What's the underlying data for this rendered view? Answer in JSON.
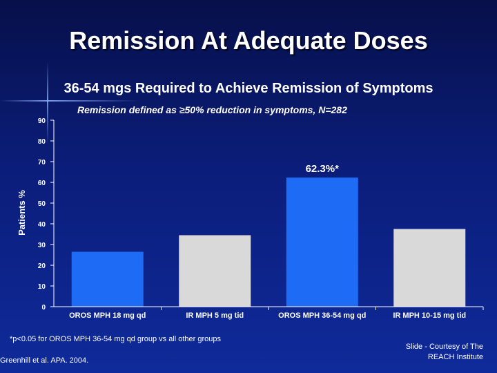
{
  "slide": {
    "title": "Remission At Adequate Doses",
    "subtitle": "36-54 mgs Required to Achieve Remission of Symptoms",
    "definition": "Remission defined as ≥50% reduction in symptoms, N=282",
    "footnote": "*p<0.05 for OROS MPH 36-54 mg qd group vs all other groups",
    "citation": "Greenhill et al. APA. 2004.",
    "credit_line1": "Slide - Courtesy of The",
    "credit_line2": "REACH Institute"
  },
  "colors": {
    "blue_bar": "#1e6cf6",
    "gray_bar": "#d9d9d9"
  },
  "chart_data": {
    "type": "bar",
    "title": "Remission defined as ≥50% reduction in symptoms, N=282",
    "xlabel": "",
    "ylabel": "Patients %",
    "ylim": [
      0,
      90
    ],
    "yticks": [
      0,
      10,
      20,
      30,
      40,
      50,
      60,
      70,
      80,
      90
    ],
    "categories": [
      "OROS MPH 18 mg qd",
      "IR MPH 5 mg tid",
      "OROS MPH 36-54 mg qd",
      "IR MPH 10-15 mg tid"
    ],
    "values": [
      26.5,
      34.5,
      62.3,
      37.5
    ],
    "bar_colors": [
      "blue",
      "gray",
      "blue",
      "gray"
    ],
    "data_labels": [
      "",
      "",
      "62.3%*",
      ""
    ],
    "grid": false,
    "legend": "none"
  }
}
